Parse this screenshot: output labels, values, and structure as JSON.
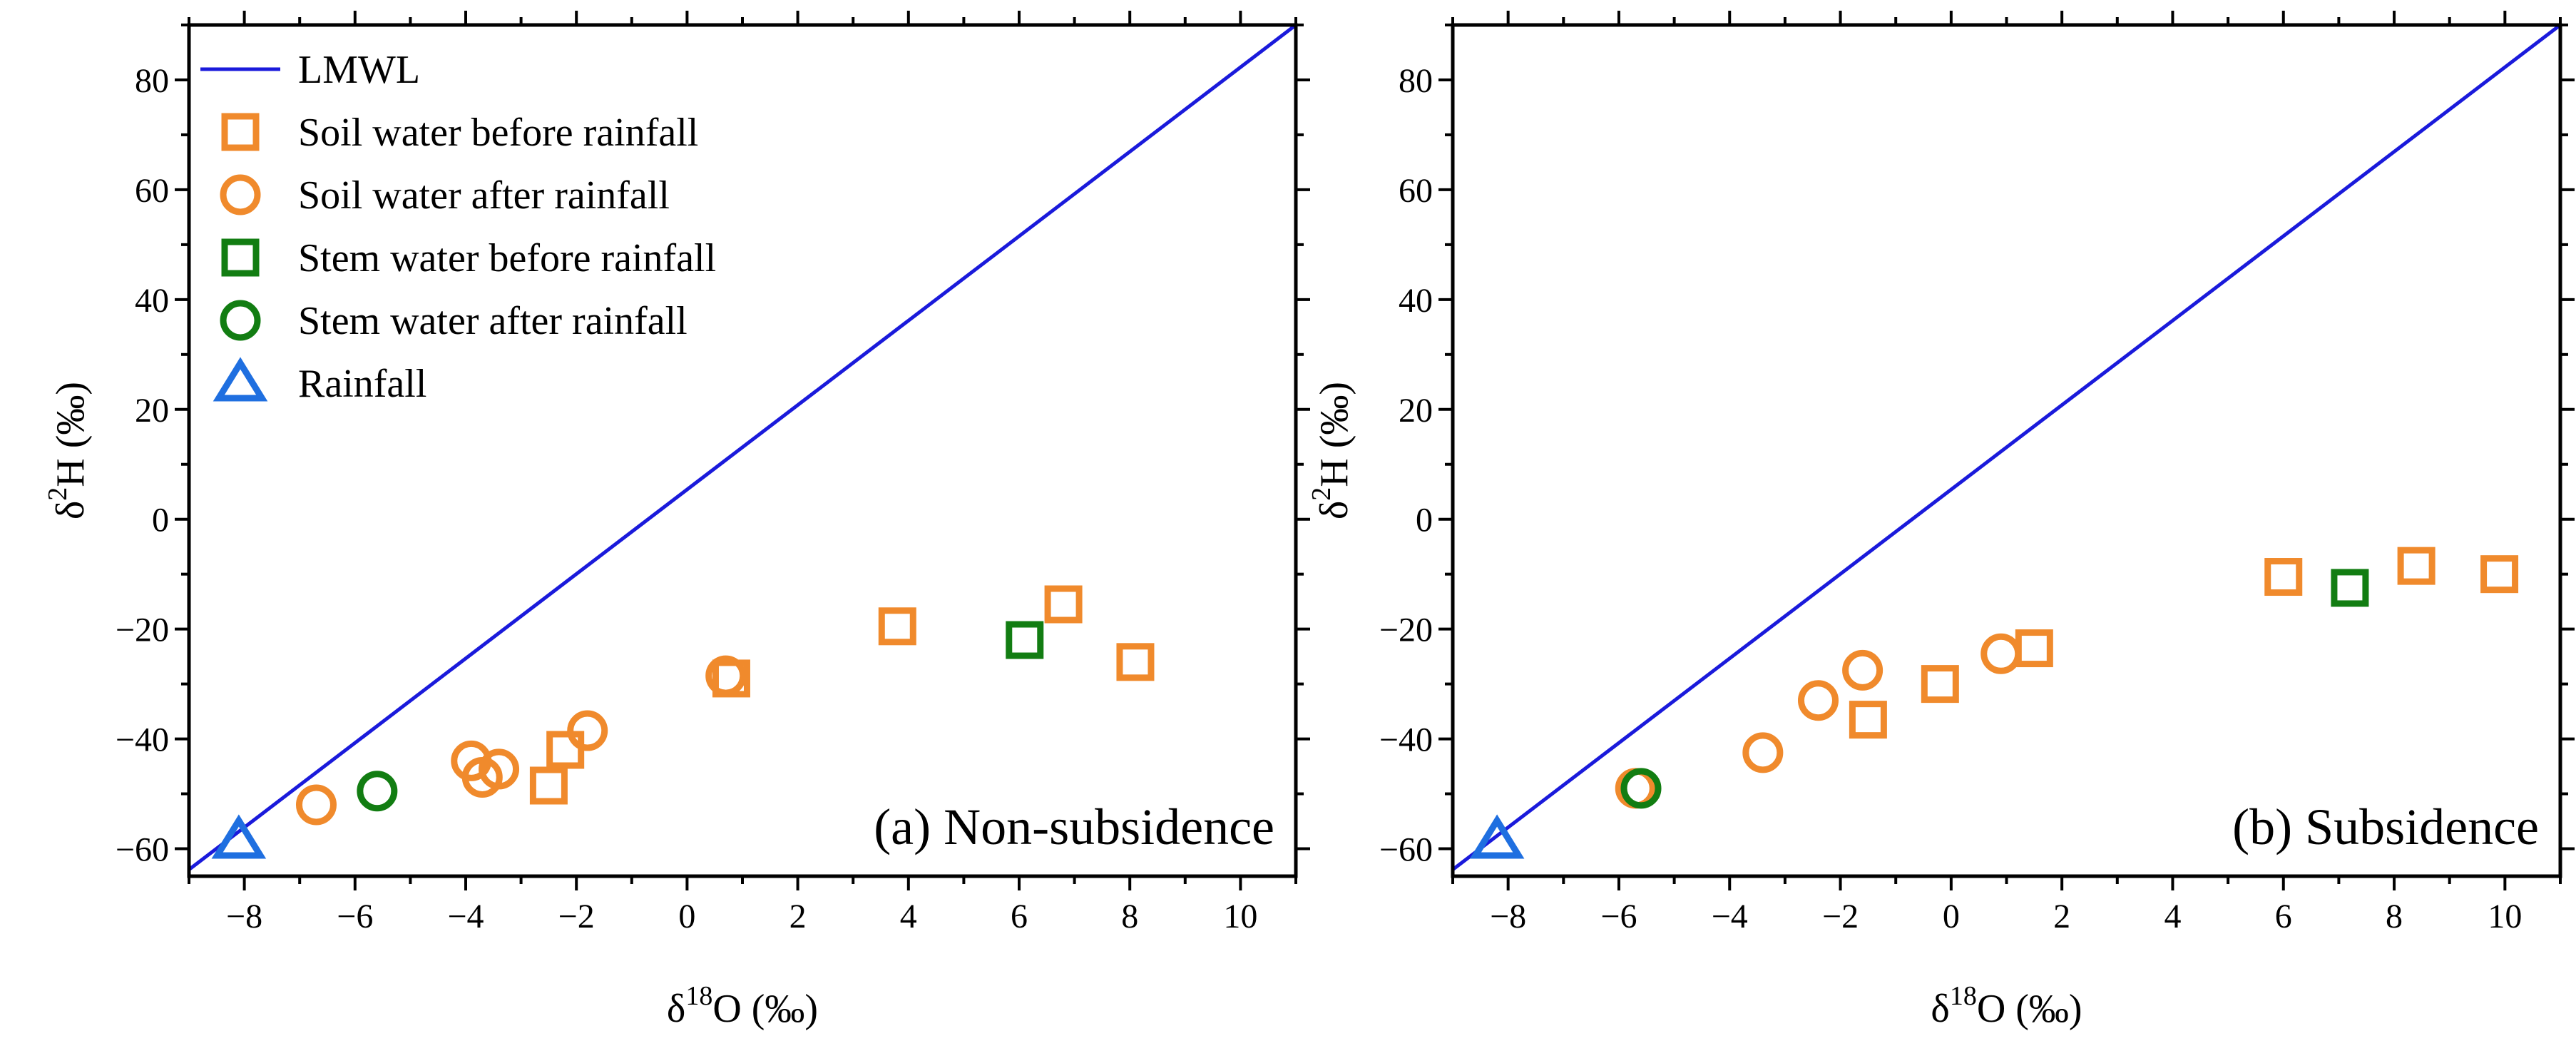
{
  "chart_data": [
    {
      "type": "scatter",
      "panel_label": "(a) Non-subsidence",
      "xlabel": {
        "base": "δ",
        "sup": "18",
        "rest": "O (‰)"
      },
      "ylabel": {
        "base": "δ",
        "sup": "2",
        "rest": "H (‰)"
      },
      "xlim": [
        -9,
        11
      ],
      "ylim": [
        -65,
        90
      ],
      "xticks": [
        -8,
        -6,
        -4,
        -2,
        0,
        2,
        4,
        6,
        8,
        10
      ],
      "xtick_labels": [
        "−8",
        "−6",
        "−4",
        "−2",
        "0",
        "2",
        "4",
        "6",
        "8",
        "10"
      ],
      "yticks": [
        -60,
        -40,
        -20,
        0,
        20,
        40,
        60,
        80
      ],
      "ytick_labels": [
        "−60",
        "−40",
        "−20",
        "0",
        "20",
        "40",
        "60",
        "80"
      ],
      "legend_position": "top-left",
      "lines": [
        {
          "name": "LMWL",
          "color": "#1a1adb",
          "points": [
            [
              -9,
              -63.8
            ],
            [
              11,
              90
            ]
          ]
        }
      ],
      "series": [
        {
          "name": "Soil water before rainfall",
          "marker": "square",
          "color": "#f08a2c",
          "points": [
            [
              -2.5,
              -48.5
            ],
            [
              -2.2,
              -42.0
            ],
            [
              0.8,
              -29.0
            ],
            [
              3.8,
              -19.5
            ],
            [
              6.8,
              -15.5
            ],
            [
              8.1,
              -26.0
            ]
          ]
        },
        {
          "name": "Soil water after rainfall",
          "marker": "circle",
          "color": "#f08a2c",
          "points": [
            [
              -6.7,
              -52.0
            ],
            [
              -3.9,
              -44.0
            ],
            [
              -3.7,
              -47.0
            ],
            [
              -3.4,
              -45.5
            ],
            [
              -1.8,
              -38.5
            ],
            [
              0.7,
              -28.5
            ]
          ]
        },
        {
          "name": "Stem water before rainfall",
          "marker": "square",
          "color": "#127d12",
          "points": [
            [
              6.1,
              -22.0
            ]
          ]
        },
        {
          "name": "Stem water after rainfall",
          "marker": "circle",
          "color": "#127d12",
          "points": [
            [
              -5.6,
              -49.5
            ]
          ]
        },
        {
          "name": "Rainfall",
          "marker": "triangle",
          "color": "#1f6fe0",
          "points": [
            [
              -8.1,
              -58.5
            ]
          ]
        }
      ]
    },
    {
      "type": "scatter",
      "panel_label": "(b) Subsidence",
      "xlabel": {
        "base": "δ",
        "sup": "18",
        "rest": "O (‰)"
      },
      "ylabel": {
        "base": "δ",
        "sup": "2",
        "rest": "H (‰)"
      },
      "xlim": [
        -9,
        11
      ],
      "ylim": [
        -65,
        90
      ],
      "xticks": [
        -8,
        -6,
        -4,
        -2,
        0,
        2,
        4,
        6,
        8,
        10
      ],
      "xtick_labels": [
        "−8",
        "−6",
        "−4",
        "−2",
        "0",
        "2",
        "4",
        "6",
        "8",
        "10"
      ],
      "yticks": [
        -60,
        -40,
        -20,
        0,
        20,
        40,
        60,
        80
      ],
      "ytick_labels": [
        "−60",
        "−40",
        "−20",
        "0",
        "20",
        "40",
        "60",
        "80"
      ],
      "lines": [
        {
          "name": "LMWL",
          "color": "#1a1adb",
          "points": [
            [
              -9,
              -63.8
            ],
            [
              11,
              90
            ]
          ]
        }
      ],
      "series": [
        {
          "name": "Soil water before rainfall",
          "marker": "square",
          "color": "#f08a2c",
          "points": [
            [
              -1.5,
              -36.5
            ],
            [
              -0.2,
              -30.0
            ],
            [
              1.5,
              -23.5
            ],
            [
              6.0,
              -10.5
            ],
            [
              8.4,
              -8.5
            ],
            [
              9.9,
              -10.0
            ]
          ]
        },
        {
          "name": "Soil water after rainfall",
          "marker": "circle",
          "color": "#f08a2c",
          "points": [
            [
              -5.7,
              -49.0
            ],
            [
              -3.4,
              -42.5
            ],
            [
              -2.4,
              -33.0
            ],
            [
              -1.6,
              -27.5
            ],
            [
              0.9,
              -24.5
            ]
          ]
        },
        {
          "name": "Stem water before rainfall",
          "marker": "square",
          "color": "#127d12",
          "points": [
            [
              7.2,
              -12.5
            ]
          ]
        },
        {
          "name": "Stem water after rainfall",
          "marker": "circle",
          "color": "#127d12",
          "points": [
            [
              -5.6,
              -49.0
            ]
          ]
        },
        {
          "name": "Rainfall",
          "marker": "triangle",
          "color": "#1f6fe0",
          "points": [
            [
              -8.2,
              -58.5
            ]
          ]
        }
      ]
    }
  ]
}
